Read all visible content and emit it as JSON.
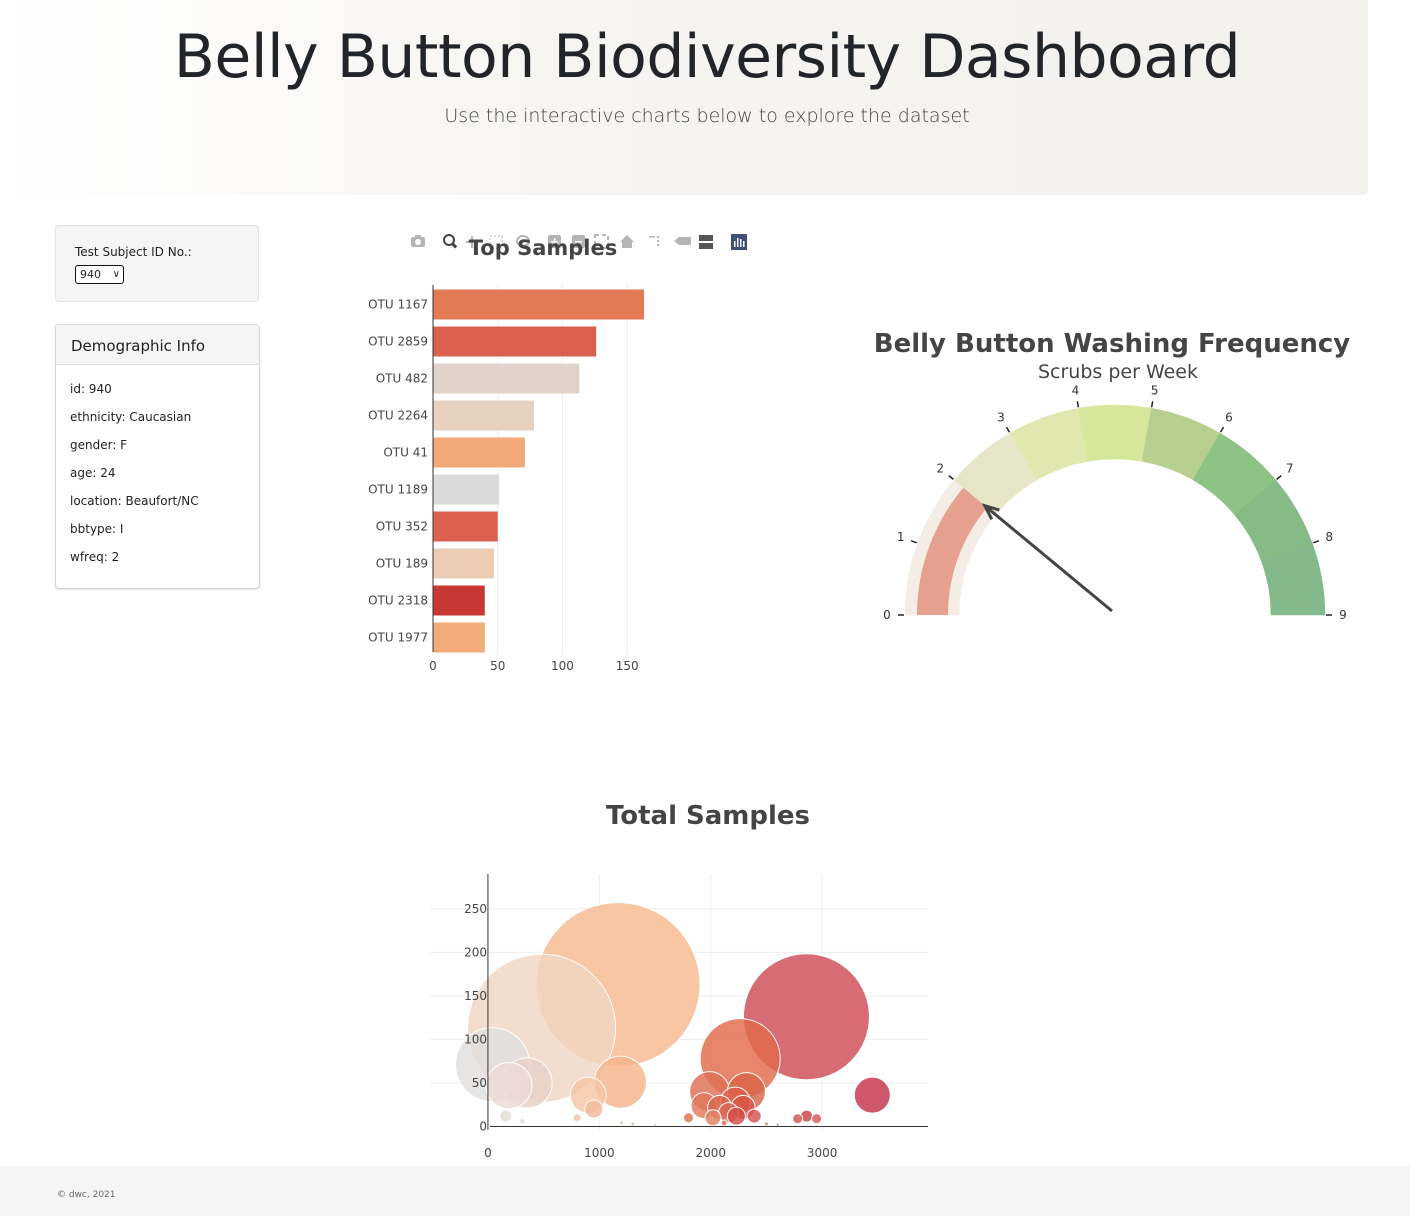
{
  "header": {
    "title": "Belly Button Biodiversity Dashboard",
    "subtitle": "Use the interactive charts below to explore the dataset"
  },
  "selector": {
    "label": "Test Subject ID No.:",
    "selected": "940"
  },
  "demographics": {
    "title": "Demographic Info",
    "rows": [
      "id: 940",
      "ethnicity: Caucasian",
      "gender: F",
      "age: 24",
      "location: Beaufort/NC",
      "bbtype: I",
      "wfreq: 2"
    ]
  },
  "toolbar": {
    "icons": [
      "camera-icon",
      "zoom-icon",
      "pan-icon",
      "box-select-icon",
      "lasso-icon",
      "zoom-in-icon",
      "zoom-out-icon",
      "autoscale-icon",
      "home-icon",
      "spike-icon",
      "hover-closest-icon",
      "hover-compare-icon",
      "plotly-logo-icon"
    ]
  },
  "footer": {
    "text": "© dwc, 2021"
  },
  "chart_data": [
    {
      "type": "bar",
      "orientation": "horizontal",
      "title": "Top Samples",
      "categories": [
        "OTU 1167",
        "OTU 2859",
        "OTU 482",
        "OTU 2264",
        "OTU 41",
        "OTU 1189",
        "OTU 352",
        "OTU 189",
        "OTU 2318",
        "OTU 1977"
      ],
      "values": [
        163,
        126,
        113,
        78,
        71,
        51,
        50,
        47,
        40,
        40
      ],
      "colors": [
        "#e47a55",
        "#d9604c",
        "#e0d3ca",
        "#e7d2bf",
        "#f3a879",
        "#dadada",
        "#dc604f",
        "#eccbb3",
        "#c73835",
        "#f3ab7a"
      ],
      "xlim": [
        0,
        190
      ],
      "xticks": [
        0,
        50,
        100,
        150
      ]
    },
    {
      "type": "gauge",
      "title": "Belly Button Washing Frequency",
      "subtitle": "Scrubs per Week",
      "value": 2,
      "range": [
        0,
        9
      ],
      "ticks": [
        0,
        1,
        2,
        3,
        4,
        5,
        6,
        7,
        8,
        9
      ],
      "value_bar_color": "#e6a08f",
      "step_colors": [
        "#f3ede6",
        "#f3ede6",
        "#e8e6c8",
        "#e0e8b0",
        "#d6e79b",
        "#b7cf8e",
        "#8dc384",
        "#86bb86",
        "#84b98c"
      ]
    },
    {
      "type": "scatter",
      "title": "Total Samples",
      "xlim": [
        -520,
        3950
      ],
      "ylim": [
        -4,
        290
      ],
      "xticks": [
        0,
        1000,
        2000,
        3000
      ],
      "yticks": [
        0,
        50,
        100,
        150,
        200,
        250
      ],
      "points": [
        {
          "x": 1167,
          "y": 163,
          "r": 82,
          "color": "#f6b98d"
        },
        {
          "x": 482,
          "y": 113,
          "r": 74,
          "color": "#efd5c5"
        },
        {
          "x": 2859,
          "y": 126,
          "r": 63,
          "color": "#cf4c56"
        },
        {
          "x": 41,
          "y": 71,
          "r": 37,
          "color": "#e2dfde"
        },
        {
          "x": 2264,
          "y": 78,
          "r": 40,
          "color": "#e06a4b"
        },
        {
          "x": 352,
          "y": 50,
          "r": 25,
          "color": "#e8d1c6"
        },
        {
          "x": 189,
          "y": 47,
          "r": 23,
          "color": "#eadbd6"
        },
        {
          "x": 1189,
          "y": 51,
          "r": 26,
          "color": "#f4b48b"
        },
        {
          "x": 3450,
          "y": 36,
          "r": 18,
          "color": "#c5324b"
        },
        {
          "x": 900,
          "y": 36,
          "r": 18,
          "color": "#f7c4a5"
        },
        {
          "x": 950,
          "y": 20,
          "r": 9,
          "color": "#f3b898"
        },
        {
          "x": 1990,
          "y": 40,
          "r": 20,
          "color": "#de7055"
        },
        {
          "x": 2320,
          "y": 40,
          "r": 19,
          "color": "#d86448"
        },
        {
          "x": 2220,
          "y": 28,
          "r": 15,
          "color": "#dd5f4a"
        },
        {
          "x": 1940,
          "y": 24,
          "r": 13,
          "color": "#e0775b"
        },
        {
          "x": 2080,
          "y": 22,
          "r": 12,
          "color": "#da654e"
        },
        {
          "x": 2290,
          "y": 22,
          "r": 12,
          "color": "#d95547"
        },
        {
          "x": 2160,
          "y": 16,
          "r": 10,
          "color": "#db6a55"
        },
        {
          "x": 2230,
          "y": 12,
          "r": 9,
          "color": "#d44a45"
        },
        {
          "x": 2020,
          "y": 10,
          "r": 8,
          "color": "#e08060"
        },
        {
          "x": 2390,
          "y": 12,
          "r": 7,
          "color": "#d55050"
        },
        {
          "x": 2860,
          "y": 12,
          "r": 6,
          "color": "#c94246"
        },
        {
          "x": 2780,
          "y": 9,
          "r": 5,
          "color": "#d4504f"
        },
        {
          "x": 2950,
          "y": 9,
          "r": 5,
          "color": "#d35a58"
        },
        {
          "x": 1800,
          "y": 10,
          "r": 5,
          "color": "#e0704f"
        },
        {
          "x": 160,
          "y": 12,
          "r": 6,
          "color": "#e3dcd6"
        },
        {
          "x": 310,
          "y": 6,
          "r": 3,
          "color": "#eadcd2"
        },
        {
          "x": 800,
          "y": 10,
          "r": 4,
          "color": "#f2c2a4"
        },
        {
          "x": 1200,
          "y": 4,
          "r": 2,
          "color": "#f2b796"
        },
        {
          "x": 1300,
          "y": 3,
          "r": 2,
          "color": "#f0b090"
        },
        {
          "x": 1500,
          "y": 2,
          "r": 1.5,
          "color": "#f2b896"
        },
        {
          "x": 2500,
          "y": 3,
          "r": 2,
          "color": "#e08060"
        },
        {
          "x": 2600,
          "y": 2,
          "r": 1.5,
          "color": "#d66050"
        },
        {
          "x": 2120,
          "y": 4,
          "r": 3,
          "color": "#da6b55"
        }
      ]
    }
  ]
}
